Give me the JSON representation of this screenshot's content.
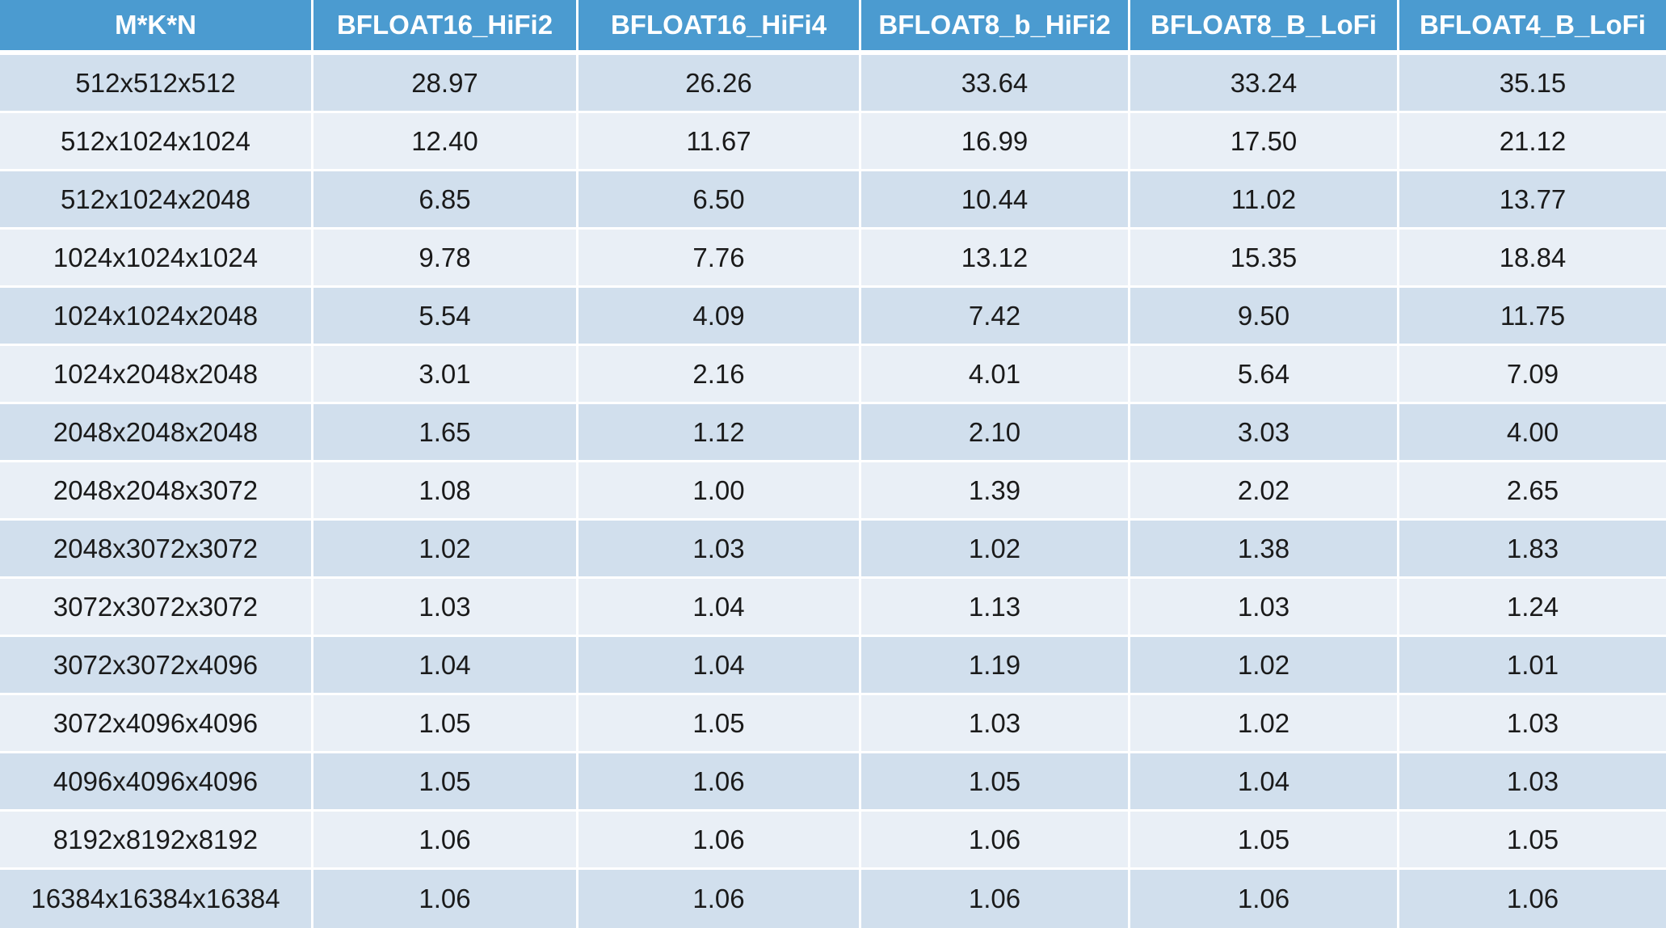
{
  "table": {
    "headers": [
      "M*K*N",
      "BFLOAT16_HiFi2",
      "BFLOAT16_HiFi4",
      "BFLOAT8_b_HiFi2",
      "BFLOAT8_B_LoFi",
      "BFLOAT4_B_LoFi"
    ],
    "rows": [
      [
        "512x512x512",
        "28.97",
        "26.26",
        "33.64",
        "33.24",
        "35.15"
      ],
      [
        "512x1024x1024",
        "12.40",
        "11.67",
        "16.99",
        "17.50",
        "21.12"
      ],
      [
        "512x1024x2048",
        "6.85",
        "6.50",
        "10.44",
        "11.02",
        "13.77"
      ],
      [
        "1024x1024x1024",
        "9.78",
        "7.76",
        "13.12",
        "15.35",
        "18.84"
      ],
      [
        "1024x1024x2048",
        "5.54",
        "4.09",
        "7.42",
        "9.50",
        "11.75"
      ],
      [
        "1024x2048x2048",
        "3.01",
        "2.16",
        "4.01",
        "5.64",
        "7.09"
      ],
      [
        "2048x2048x2048",
        "1.65",
        "1.12",
        "2.10",
        "3.03",
        "4.00"
      ],
      [
        "2048x2048x3072",
        "1.08",
        "1.00",
        "1.39",
        "2.02",
        "2.65"
      ],
      [
        "2048x3072x3072",
        "1.02",
        "1.03",
        "1.02",
        "1.38",
        "1.83"
      ],
      [
        "3072x3072x3072",
        "1.03",
        "1.04",
        "1.13",
        "1.03",
        "1.24"
      ],
      [
        "3072x3072x4096",
        "1.04",
        "1.04",
        "1.19",
        "1.02",
        "1.01"
      ],
      [
        "3072x4096x4096",
        "1.05",
        "1.05",
        "1.03",
        "1.02",
        "1.03"
      ],
      [
        "4096x4096x4096",
        "1.05",
        "1.06",
        "1.05",
        "1.04",
        "1.03"
      ],
      [
        "8192x8192x8192",
        "1.06",
        "1.06",
        "1.06",
        "1.05",
        "1.05"
      ],
      [
        "16384x16384x16384",
        "1.06",
        "1.06",
        "1.06",
        "1.06",
        "1.06"
      ]
    ]
  },
  "colors": {
    "header_background": "#4b9bd0",
    "header_text": "#ffffff",
    "row_odd_background": "#d1dfed",
    "row_even_background": "#e9eff6"
  }
}
